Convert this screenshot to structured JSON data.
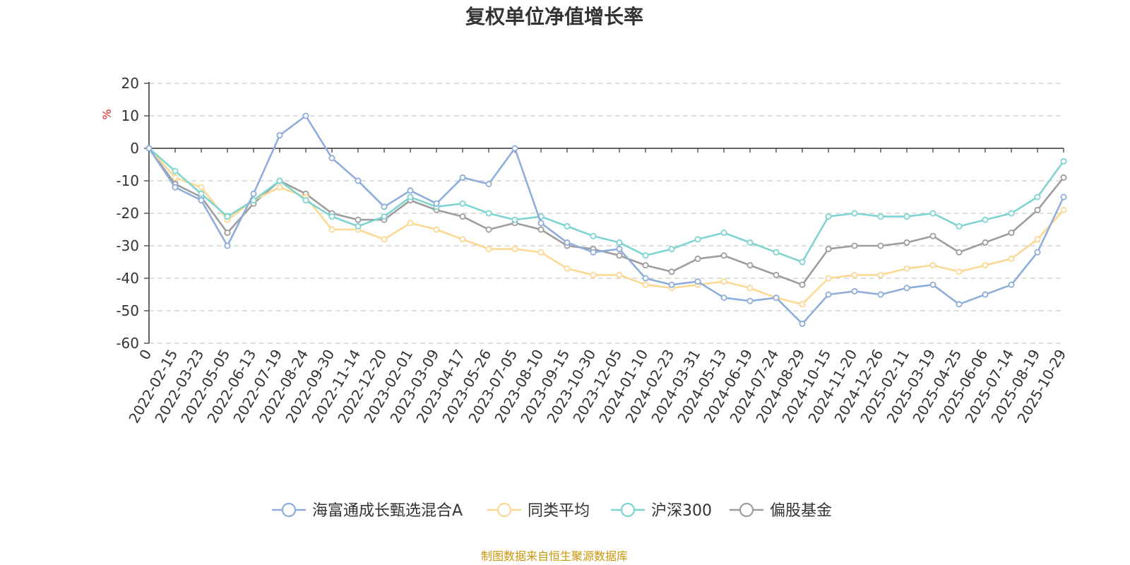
{
  "chart_data": {
    "type": "line",
    "title": "复权单位净值增长率",
    "ylabel": "%",
    "ylim": [
      -60,
      20
    ],
    "yticks": [
      20,
      10,
      0,
      -10,
      -20,
      -30,
      -40,
      -50,
      -60
    ],
    "grid": true,
    "legend_position": "bottom",
    "x_ticks": [
      "0",
      "2022-02-15",
      "2022-03-23",
      "2022-05-05",
      "2022-06-13",
      "2022-07-19",
      "2022-08-24",
      "2022-09-30",
      "2022-11-14",
      "2022-12-20",
      "2023-02-01",
      "2023-03-09",
      "2023-04-17",
      "2023-05-26",
      "2023-07-05",
      "2023-08-10",
      "2023-09-15",
      "2023-10-30",
      "2023-12-05",
      "2024-01-10",
      "2024-02-23",
      "2024-03-31",
      "2024-05-13",
      "2024-06-19",
      "2024-07-24",
      "2024-08-29",
      "2024-10-15",
      "2024-11-20",
      "2024-12-26",
      "2025-02-11",
      "2025-03-19",
      "2025-04-25",
      "2025-06-06",
      "2025-07-14",
      "2025-08-19",
      "2025-10-29"
    ],
    "x": [
      "0",
      "2022-02-15",
      "2022-03-23",
      "2022-05-05",
      "2022-06-13",
      "2022-07-19",
      "2022-08-24",
      "2022-09-30",
      "2022-11-14",
      "2022-12-20",
      "2023-02-01",
      "2023-03-09",
      "2023-04-17",
      "2023-05-26",
      "2023-07-05",
      "2023-08-10",
      "2023-09-15",
      "2023-10-30",
      "2023-12-05",
      "2024-01-10",
      "2024-02-23",
      "2024-03-31",
      "2024-05-13",
      "2024-06-19",
      "2024-07-24",
      "2024-08-29",
      "2024-10-15",
      "2024-11-20",
      "2024-12-26",
      "2025-02-11",
      "2025-03-19",
      "2025-04-25",
      "2025-06-06",
      "2025-07-14",
      "2025-08-19",
      "2025-10-29"
    ],
    "series": [
      {
        "name": "海富通成长甄选混合A",
        "color": "#8eaddb",
        "values": [
          0,
          -12,
          -16,
          -30,
          -14,
          4,
          10,
          -3,
          -10,
          -18,
          -13,
          -17,
          -9,
          -11,
          0,
          -23,
          -29,
          -32,
          -31,
          -40,
          -42,
          -41,
          -46,
          -47,
          -46,
          -54,
          -45,
          -44,
          -45,
          -43,
          -42,
          -48,
          -45,
          -42,
          -32,
          -15
        ]
      },
      {
        "name": "同类平均",
        "color": "#fcd892",
        "values": [
          0,
          -9,
          -12,
          -22,
          -16,
          -12,
          -15,
          -25,
          -25,
          -28,
          -23,
          -25,
          -28,
          -31,
          -31,
          -32,
          -37,
          -39,
          -39,
          -42,
          -43,
          -42,
          -41,
          -43,
          -46,
          -48,
          -40,
          -39,
          -39,
          -37,
          -36,
          -38,
          -36,
          -34,
          -28,
          -19
        ]
      },
      {
        "name": "沪深300",
        "color": "#7fd4d1",
        "values": [
          0,
          -7,
          -14,
          -21,
          -16,
          -10,
          -16,
          -21,
          -24,
          -21,
          -15,
          -18,
          -17,
          -20,
          -22,
          -21,
          -24,
          -27,
          -29,
          -33,
          -31,
          -28,
          -26,
          -29,
          -32,
          -35,
          -21,
          -20,
          -21,
          -21,
          -20,
          -24,
          -22,
          -20,
          -15,
          -4
        ]
      },
      {
        "name": "偏股基金",
        "color": "#9d9d9d",
        "values": [
          0,
          -11,
          -15,
          -26,
          -17,
          -10,
          -14,
          -20,
          -22,
          -22,
          -16,
          -19,
          -21,
          -25,
          -23,
          -25,
          -30,
          -31,
          -33,
          -36,
          -38,
          -34,
          -33,
          -36,
          -39,
          -42,
          -31,
          -30,
          -30,
          -29,
          -27,
          -32,
          -29,
          -26,
          -19,
          -9
        ]
      }
    ],
    "source_note": "制图数据来自恒生聚源数据库"
  }
}
